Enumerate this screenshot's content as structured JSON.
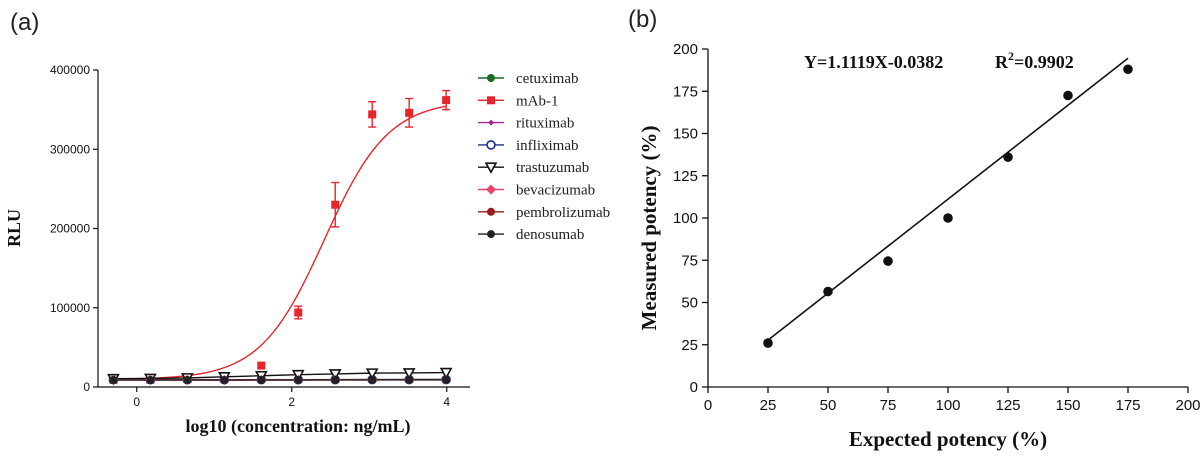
{
  "chart_data": [
    {
      "panel": "(a)",
      "type": "line",
      "title": "",
      "xlabel": "log10 (concentration: ng/mL)",
      "ylabel": "RLU",
      "xlim": [
        -0.5,
        4.3
      ],
      "ylim": [
        0,
        400000
      ],
      "xticks": [
        0,
        2,
        4
      ],
      "yticks": [
        0,
        100000,
        200000,
        300000,
        400000
      ],
      "x": [
        -0.301,
        0.176,
        0.653,
        1.13,
        1.607,
        2.084,
        2.561,
        3.038,
        3.515,
        3.992
      ],
      "legend_position": "right",
      "series": [
        {
          "name": "cetuximab",
          "color": "#1a6b2a",
          "marker": "circle",
          "values": [
            9500,
            9400,
            9300,
            9200,
            9300,
            9200,
            9300,
            9300,
            9400,
            9500
          ]
        },
        {
          "name": "mAb-1",
          "color": "#e8252b",
          "marker": "square",
          "values": [
            9000,
            9200,
            10200,
            12000,
            27000,
            94000,
            230000,
            344000,
            346000,
            362000
          ],
          "errors": [
            0,
            0,
            0,
            0,
            2500,
            8000,
            28000,
            16000,
            18000,
            12000
          ],
          "fit": {
            "bottom": 9500,
            "top": 362000,
            "logEC50": 2.42,
            "hill": 1.05
          }
        },
        {
          "name": "rituximab",
          "color": "#a0298f",
          "marker": "diamond-small",
          "values": [
            9200,
            9100,
            9100,
            9000,
            9100,
            9100,
            9200,
            9200,
            9300,
            9300
          ]
        },
        {
          "name": "infliximab",
          "color": "#1f2a8c",
          "marker": "circle-open",
          "values": [
            9300,
            9200,
            9100,
            9100,
            9200,
            9100,
            9200,
            9300,
            9300,
            9400
          ]
        },
        {
          "name": "trastuzumab",
          "color": "#111111",
          "marker": "triangle-down",
          "values": [
            10500,
            10800,
            11500,
            12800,
            14200,
            15500,
            16500,
            17500,
            17800,
            18200
          ]
        },
        {
          "name": "bevacizumab",
          "color": "#e8456b",
          "marker": "diamond",
          "values": [
            9100,
            9000,
            9000,
            8900,
            9000,
            9000,
            9100,
            9100,
            9200,
            9200
          ]
        },
        {
          "name": "pembrolizumab",
          "color": "#9b1b1b",
          "marker": "circle",
          "values": [
            9000,
            8900,
            8900,
            8800,
            8900,
            8900,
            9000,
            9000,
            9100,
            9100
          ]
        },
        {
          "name": "denosumab",
          "color": "#222222",
          "marker": "circle",
          "values": [
            8800,
            8800,
            8700,
            8700,
            8800,
            8800,
            8900,
            8900,
            9000,
            9000
          ]
        }
      ]
    },
    {
      "panel": "(b)",
      "type": "scatter",
      "title": "",
      "xlabel": "Expected potency (%)",
      "ylabel": "Measured potency (%)",
      "xlim": [
        0,
        200
      ],
      "ylim": [
        0,
        200
      ],
      "xticks": [
        0,
        25,
        50,
        75,
        100,
        125,
        150,
        175,
        200
      ],
      "yticks": [
        0,
        25,
        50,
        75,
        100,
        125,
        150,
        175,
        200
      ],
      "x": [
        25,
        50,
        75,
        100,
        125,
        150,
        175
      ],
      "y": [
        26,
        56.5,
        74.5,
        100,
        136,
        172.5,
        188
      ],
      "fit_line": {
        "slope": 1.1119,
        "intercept": -0.0382,
        "x_range": [
          25,
          175
        ]
      },
      "annotation": {
        "equation": "Y=1.1119X-0.0382",
        "r2_prefix": "R",
        "r2_sup": "2",
        "r2_value": "=0.9902"
      },
      "color": "#111111"
    }
  ]
}
